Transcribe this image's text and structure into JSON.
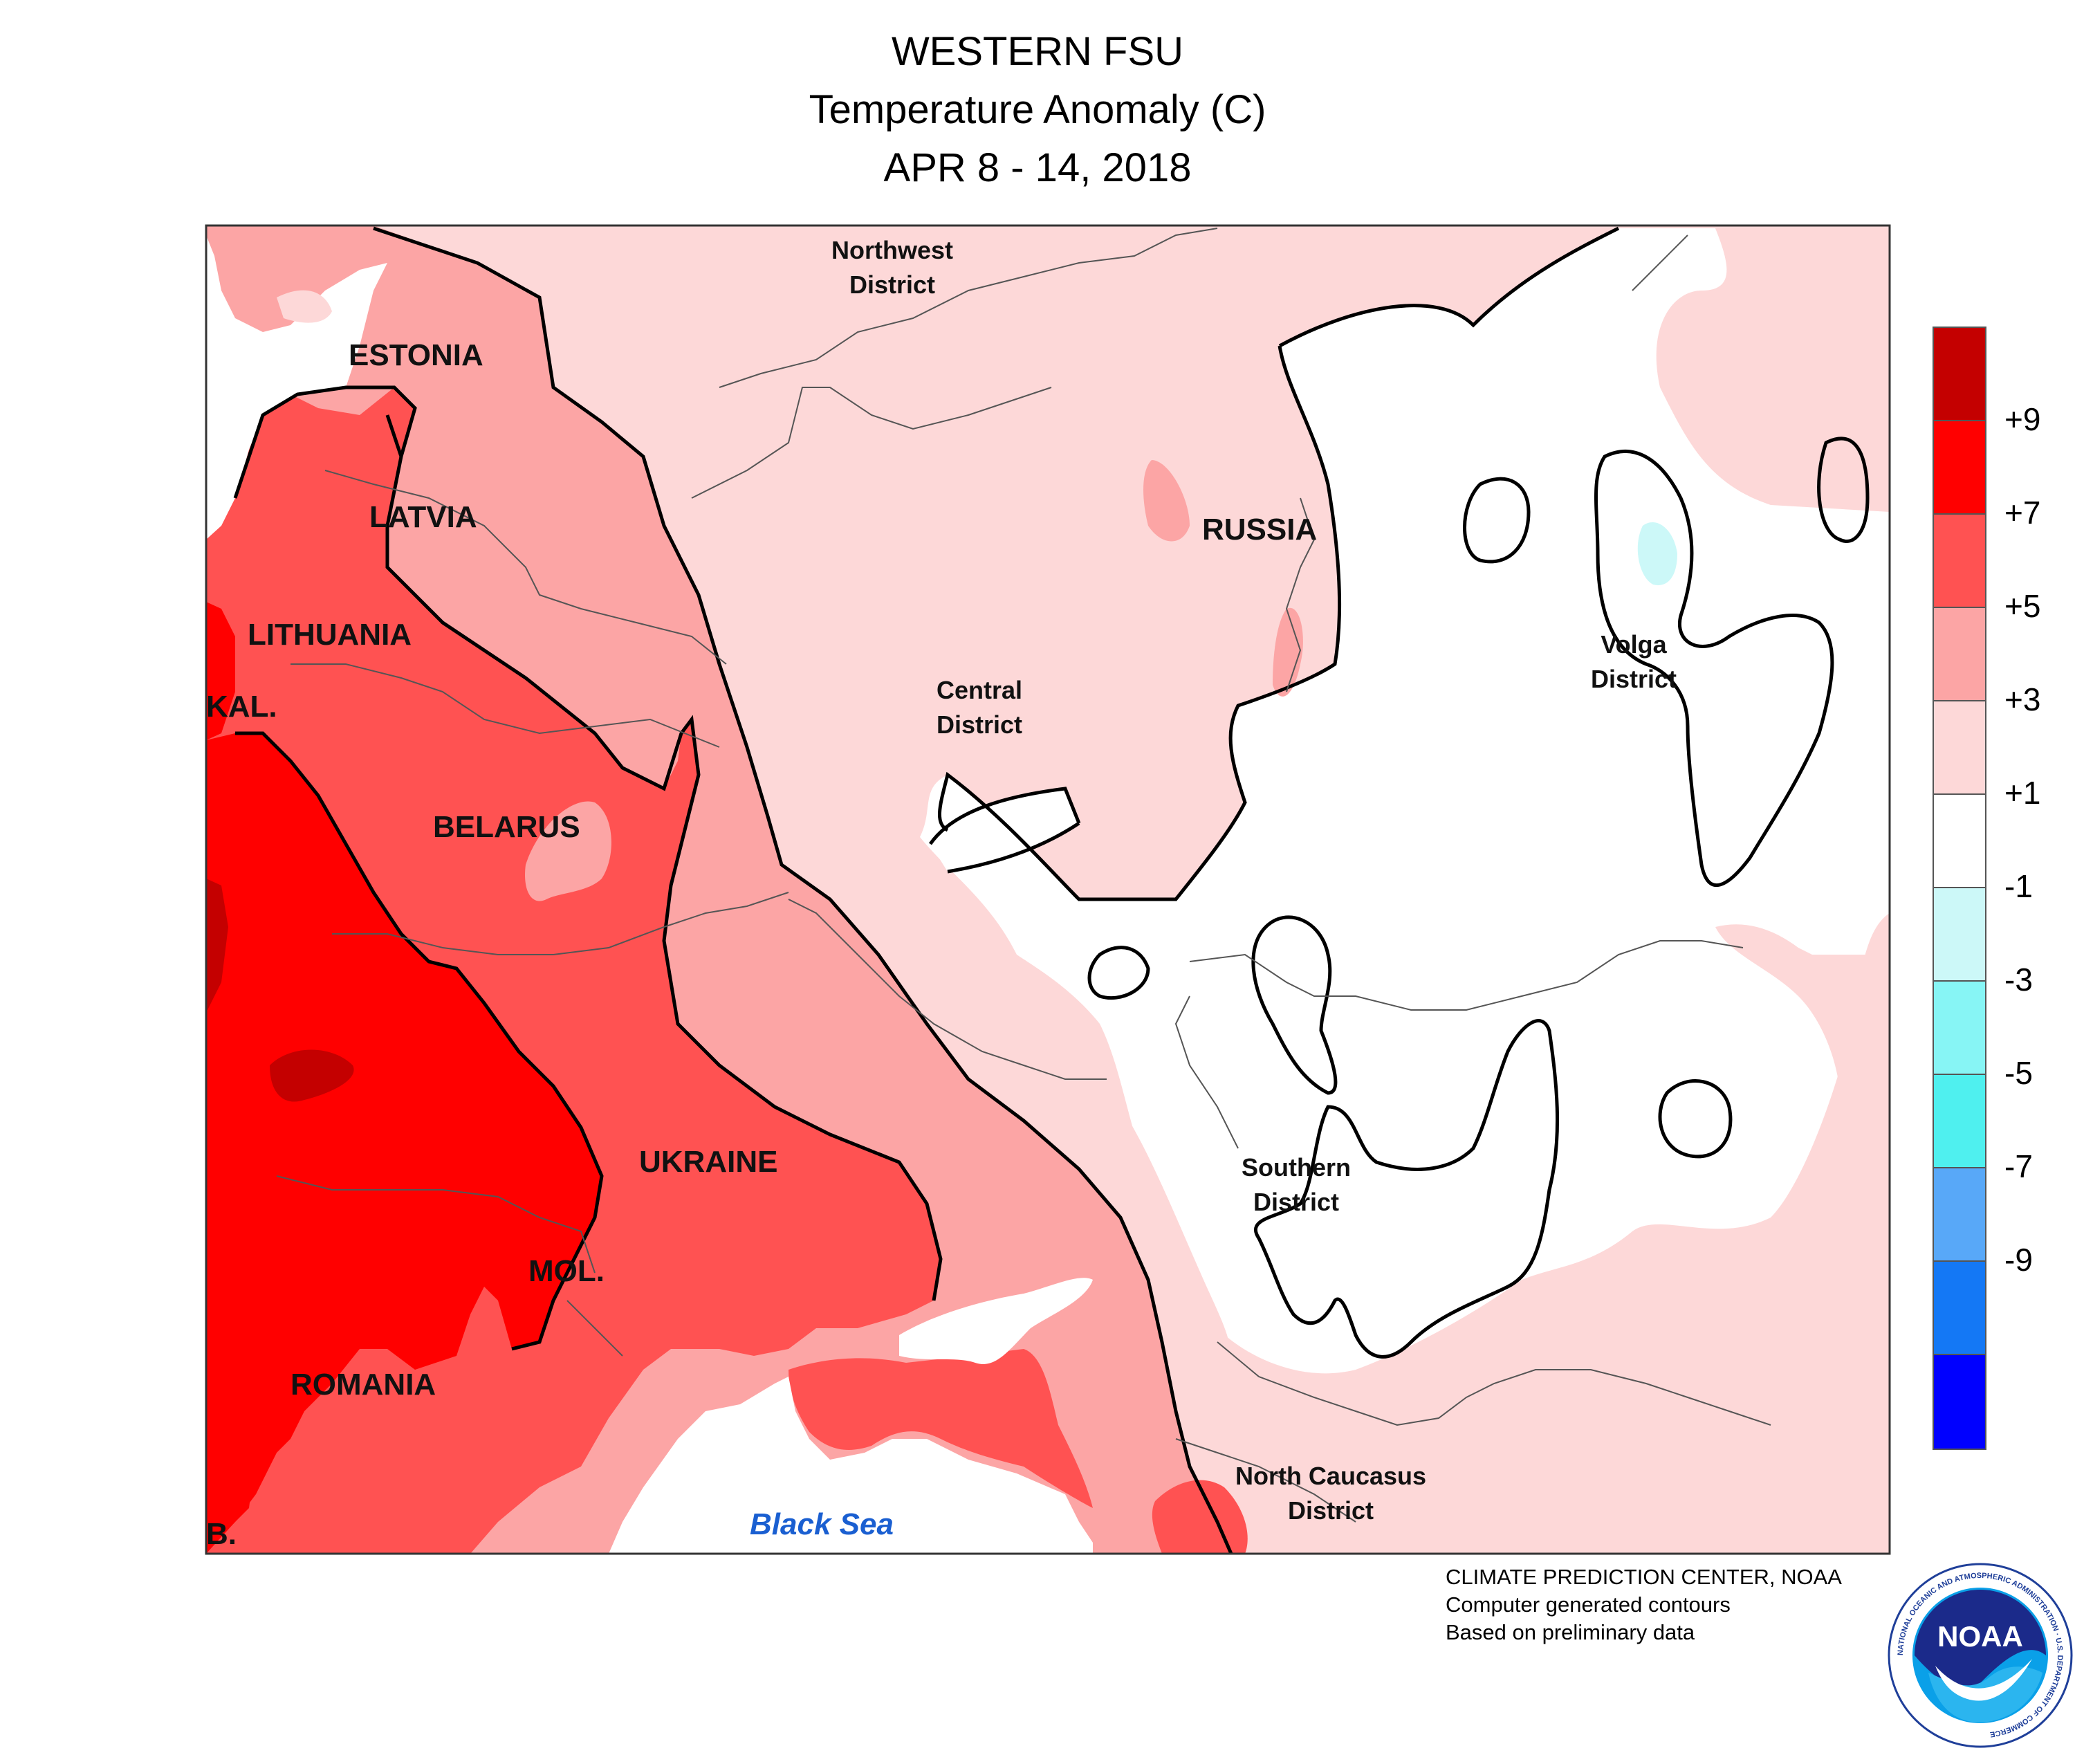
{
  "title": {
    "line1": "WESTERN FSU",
    "line2": "Temperature Anomaly (C)",
    "line3": "APR 8 - 14, 2018"
  },
  "map_labels": {
    "estonia": "ESTONIA",
    "latvia": "LATVIA",
    "lithuania": "LITHUANIA",
    "kaliningrad": "KAL.",
    "belarus": "BELARUS",
    "ukraine": "UKRAINE",
    "moldova": "MOL.",
    "romania": "ROMANIA",
    "serbia": "B.",
    "russia": "RUSSIA",
    "northwest_1": "Northwest",
    "northwest_2": "District",
    "central_1": "Central",
    "central_2": "District",
    "volga_1": "Volga",
    "volga_2": "District",
    "southern_1": "Southern",
    "southern_2": "District",
    "north_caucasus_1": "North Caucasus",
    "north_caucasus_2": "District",
    "black_sea": "Black Sea"
  },
  "legend": {
    "ticks": [
      "+9",
      "+7",
      "+5",
      "+3",
      "+1",
      "-1",
      "-3",
      "-5",
      "-7",
      "-9"
    ],
    "colors": [
      "#c40000",
      "#ff0000",
      "#ff5252",
      "#fca5a5",
      "#fdd8d8",
      "#ffffff",
      "#ccf8f8",
      "#87f5f5",
      "#4ff0ef",
      "#58a8f8",
      "#1478f5",
      "#0000ff"
    ]
  },
  "credits": {
    "line1": "CLIMATE PREDICTION CENTER, NOAA",
    "line2": "Computer generated contours",
    "line3": "Based on preliminary data"
  },
  "logo": {
    "acronym": "NOAA",
    "ring_text": "NATIONAL OCEANIC AND ATMOSPHERIC ADMINISTRATION · U.S. DEPARTMENT OF COMMERCE"
  }
}
